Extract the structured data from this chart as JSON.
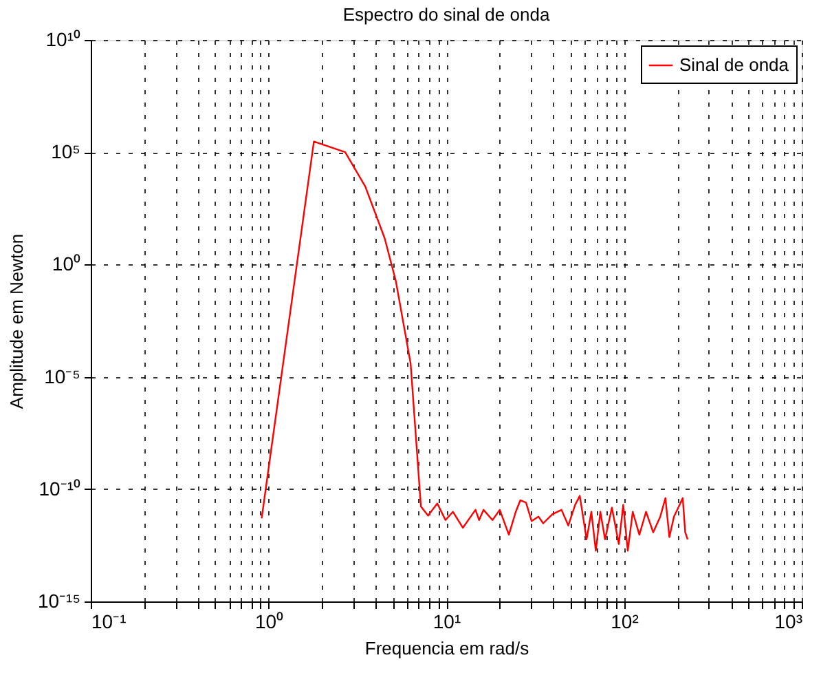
{
  "chart_data": {
    "type": "line",
    "title": "Espectro do sinal de onda",
    "xlabel": "Frequencia em rad/s",
    "ylabel": "Amplitude em Newton",
    "log": "xy",
    "grid": true,
    "legend": "top right",
    "line_style": "solid",
    "marker": "none",
    "xlim": [
      0.1,
      1000
    ],
    "ylim": [
      1e-15,
      10000000000.0
    ],
    "xticks": [
      {
        "value": 0.1,
        "label": "10⁻¹"
      },
      {
        "value": 0.2,
        "label": null
      },
      {
        "value": 0.3,
        "label": null
      },
      {
        "value": 0.4,
        "label": null
      },
      {
        "value": 0.5,
        "label": null
      },
      {
        "value": 0.6,
        "label": null
      },
      {
        "value": 0.7,
        "label": null
      },
      {
        "value": 0.8,
        "label": null
      },
      {
        "value": 0.9,
        "label": null
      },
      {
        "value": 1,
        "label": "10⁰"
      },
      {
        "value": 2,
        "label": null
      },
      {
        "value": 3,
        "label": null
      },
      {
        "value": 4,
        "label": null
      },
      {
        "value": 5,
        "label": null
      },
      {
        "value": 6,
        "label": null
      },
      {
        "value": 7,
        "label": null
      },
      {
        "value": 8,
        "label": null
      },
      {
        "value": 9,
        "label": null
      },
      {
        "value": 10,
        "label": "10¹"
      },
      {
        "value": 20,
        "label": null
      },
      {
        "value": 30,
        "label": null
      },
      {
        "value": 40,
        "label": null
      },
      {
        "value": 50,
        "label": null
      },
      {
        "value": 60,
        "label": null
      },
      {
        "value": 70,
        "label": null
      },
      {
        "value": 80,
        "label": null
      },
      {
        "value": 90,
        "label": null
      },
      {
        "value": 100,
        "label": "10²"
      },
      {
        "value": 200,
        "label": null
      },
      {
        "value": 300,
        "label": null
      },
      {
        "value": 400,
        "label": null
      },
      {
        "value": 500,
        "label": null
      },
      {
        "value": 600,
        "label": null
      },
      {
        "value": 700,
        "label": null
      },
      {
        "value": 800,
        "label": null
      },
      {
        "value": 900,
        "label": null
      },
      {
        "value": 1000,
        "label": "10³"
      }
    ],
    "yticks": [
      {
        "value": 1e-15,
        "label": "10⁻¹⁵"
      },
      {
        "value": 1e-10,
        "label": "10⁻¹⁰"
      },
      {
        "value": 1e-05,
        "label": "10⁻⁵"
      },
      {
        "value": 1,
        "label": "10⁰"
      },
      {
        "value": 100000.0,
        "label": "10⁵"
      },
      {
        "value": 10000000000.0,
        "label": "10¹⁰"
      }
    ],
    "series": [
      {
        "name": "Sinal de onda",
        "color": "#ff0000",
        "x": [
          0.915,
          1.8,
          2.7,
          3.5,
          4.5,
          5.2,
          6.3,
          7.2,
          7.9,
          8.9,
          9.9,
          10.9,
          12.4,
          14.6,
          15.3,
          16.2,
          18.2,
          20.0,
          22.5,
          24.6,
          26.1,
          28.1,
          30.2,
          33.0,
          35.1,
          39.5,
          44.5,
          48.6,
          53.1,
          56.4,
          61.6,
          65.5,
          69.4,
          73.6,
          78.2,
          85.5,
          93.5,
          99,
          105,
          112,
          122,
          133,
          146,
          160,
          171,
          180,
          191,
          202,
          214,
          221,
          228
        ],
        "values": [
          5e-12,
          300000.0,
          100000.0,
          3000.0,
          15,
          0.19,
          4e-05,
          1.7e-11,
          6.6e-12,
          2.3e-11,
          4.2e-12,
          9.8e-12,
          1.9e-12,
          1.2e-11,
          4.2e-12,
          1.2e-11,
          4.2e-12,
          1.2e-11,
          9.3e-13,
          9.8e-12,
          3.2e-11,
          2.5e-11,
          3.8e-12,
          6e-12,
          3e-12,
          7.6e-12,
          1.2e-11,
          2.4e-12,
          2e-11,
          5e-11,
          5.8e-13,
          9.8e-12,
          1.8e-13,
          9.8e-12,
          5.8e-13,
          1.5e-11,
          3.6e-13,
          2e-11,
          1.8e-13,
          9.8e-12,
          9.3e-13,
          9.8e-12,
          1.2e-12,
          6e-12,
          4e-11,
          7.3e-13,
          6e-12,
          1.5e-11,
          4e-11,
          1.2e-12,
          5.8e-13
        ]
      }
    ]
  }
}
